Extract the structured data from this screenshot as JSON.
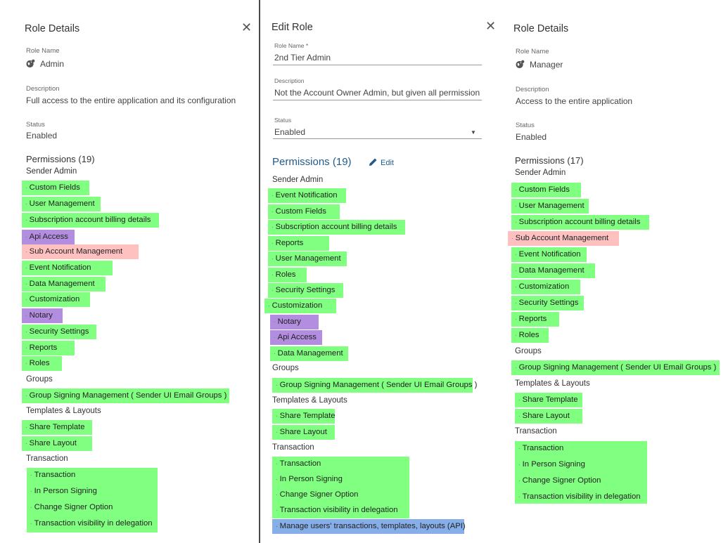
{
  "left": {
    "title": "Role Details",
    "role_name_label": "Role Name",
    "role_name": "Admin",
    "description_label": "Description",
    "description": "Full access to the entire application and its configuration",
    "status_label": "Status",
    "status": "Enabled",
    "permissions_title": "Permissions (19)",
    "groups": [
      {
        "name": "Sender Admin",
        "items": [
          {
            "label": "Custom Fields",
            "color": "#80ff80"
          },
          {
            "label": "User Management",
            "color": "#80ff80"
          },
          {
            "label": "Subscription account billing details",
            "color": "#80ff80"
          },
          {
            "label": "Api Access",
            "color": "#b38ee0"
          },
          {
            "label": "Sub Account Management",
            "color": "#ffc0c0"
          },
          {
            "label": "Event Notification",
            "color": "#80ff80"
          },
          {
            "label": "Data Management",
            "color": "#80ff80"
          },
          {
            "label": "Customization",
            "color": "#80ff80"
          },
          {
            "label": "Notary",
            "color": "#b38ee0"
          },
          {
            "label": "Security Settings",
            "color": "#80ff80"
          },
          {
            "label": "Reports",
            "color": "#80ff80"
          },
          {
            "label": "Roles",
            "color": "#80ff80"
          }
        ]
      },
      {
        "name": "Groups",
        "items": [
          {
            "label": "Group Signing Management ( Sender UI Email Groups )",
            "color": "#80ff80"
          }
        ]
      },
      {
        "name": "Templates & Layouts",
        "items": [
          {
            "label": "Share Template",
            "color": "#80ff80"
          },
          {
            "label": "Share Layout",
            "color": "#80ff80"
          }
        ]
      },
      {
        "name": "Transaction",
        "items": [
          {
            "label": "Transaction",
            "color": "#80ff80"
          },
          {
            "label": "In Person Signing",
            "color": "#80ff80"
          },
          {
            "label": "Change Signer Option",
            "color": "#80ff80"
          },
          {
            "label": "Transaction visibility in delegation",
            "color": "#80ff80"
          }
        ]
      }
    ]
  },
  "middle": {
    "title": "Edit Role",
    "role_name_label": "Role Name *",
    "role_name_value": "2nd Tier Admin",
    "description_label": "Description",
    "description_value": "Not the Account Owner Admin, but given all permission wit",
    "status_label": "Status",
    "status_value": "Enabled",
    "permissions_title": "Permissions (19)",
    "edit_label": "Edit",
    "groups": [
      {
        "name": "Sender Admin",
        "items": [
          {
            "label": "Event Notification",
            "color": "#80ff80"
          },
          {
            "label": "Custom Fields",
            "color": "#80ff80"
          },
          {
            "label": "Subscription account billing details",
            "color": "#80ff80"
          },
          {
            "label": "Reports",
            "color": "#80ff80"
          },
          {
            "label": "User Management",
            "color": "#80ff80"
          },
          {
            "label": "Roles",
            "color": "#80ff80"
          },
          {
            "label": "Security Settings",
            "color": "#80ff80"
          },
          {
            "label": "Customization",
            "color": "#80ff80"
          },
          {
            "label": "Notary",
            "color": "#b38ee0"
          },
          {
            "label": "Api Access",
            "color": "#b38ee0"
          },
          {
            "label": "Data Management",
            "color": "#80ff80"
          }
        ]
      },
      {
        "name": "Groups",
        "items": [
          {
            "label": "Group Signing Management ( Sender UI Email Groups )",
            "color": "#80ff80"
          }
        ]
      },
      {
        "name": "Templates & Layouts",
        "items": [
          {
            "label": "Share Template",
            "color": "#80ff80"
          },
          {
            "label": "Share Layout",
            "color": "#80ff80"
          }
        ]
      },
      {
        "name": "Transaction",
        "items": [
          {
            "label": "Transaction",
            "color": "#80ff80"
          },
          {
            "label": "In Person Signing",
            "color": "#80ff80"
          },
          {
            "label": "Change Signer Option",
            "color": "#80ff80"
          },
          {
            "label": "Transaction visibility in delegation",
            "color": "#80ff80"
          },
          {
            "label": "Manage users' transactions, templates, layouts (API)",
            "color": "#86aee8"
          }
        ]
      }
    ]
  },
  "right": {
    "title": "Role Details",
    "role_name_label": "Role Name",
    "role_name": "Manager",
    "description_label": "Description",
    "description": "Access to the entire application",
    "status_label": "Status",
    "status": "Enabled",
    "permissions_title": "Permissions (17)",
    "groups": [
      {
        "name": "Sender Admin",
        "items": [
          {
            "label": "Custom Fields",
            "color": "#80ff80"
          },
          {
            "label": "User Management",
            "color": "#80ff80"
          },
          {
            "label": "Subscription account billing details",
            "color": "#80ff80"
          },
          {
            "label": "Sub Account Management",
            "color": "#ffc0c0"
          },
          {
            "label": "Event Notification",
            "color": "#80ff80"
          },
          {
            "label": "Data Management",
            "color": "#80ff80"
          },
          {
            "label": "Customization",
            "color": "#80ff80"
          },
          {
            "label": "Security Settings",
            "color": "#80ff80"
          },
          {
            "label": "Reports",
            "color": "#80ff80"
          },
          {
            "label": "Roles",
            "color": "#80ff80"
          }
        ]
      },
      {
        "name": "Groups",
        "items": [
          {
            "label": "Group Signing Management ( Sender UI Email Groups )",
            "color": "#80ff80"
          }
        ]
      },
      {
        "name": "Templates & Layouts",
        "items": [
          {
            "label": "Share Template",
            "color": "#80ff80"
          },
          {
            "label": "Share Layout",
            "color": "#80ff80"
          }
        ]
      },
      {
        "name": "Transaction",
        "items": [
          {
            "label": "Transaction",
            "color": "#80ff80"
          },
          {
            "label": "In Person Signing",
            "color": "#80ff80"
          },
          {
            "label": "Change Signer Option",
            "color": "#80ff80"
          },
          {
            "label": "Transaction visibility in delegation",
            "color": "#80ff80"
          }
        ]
      }
    ]
  },
  "icons": {
    "close": "close-icon",
    "role": "globe-user-icon",
    "edit": "pencil-icon",
    "dropdown": "caret-down-icon"
  }
}
